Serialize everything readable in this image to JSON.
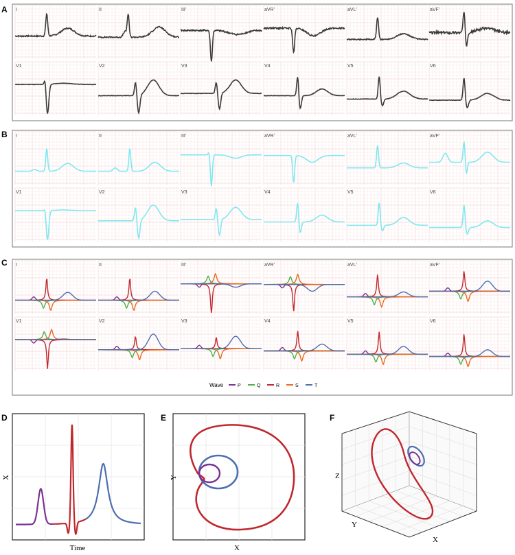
{
  "panel_letters": [
    "A",
    "B",
    "C",
    "D",
    "E",
    "F"
  ],
  "lead_labels": [
    "I",
    "II",
    "IIIʹ",
    "aVRʹ",
    "aVLʹ",
    "aVFʹ",
    "V1",
    "V2",
    "V3",
    "V4",
    "V5",
    "V6"
  ],
  "legend": {
    "title": "Wave",
    "entries": [
      {
        "name": "P",
        "color": "#7B3294"
      },
      {
        "name": "Q",
        "color": "#4DAF4A"
      },
      {
        "name": "R",
        "color": "#C0272D"
      },
      {
        "name": "S",
        "color": "#E66A1F"
      },
      {
        "name": "T",
        "color": "#4A6FB0"
      }
    ]
  },
  "colors": {
    "raw_trace": "#3a3a3a",
    "fit_trace": "#7EE8F0",
    "grid_major": "#f0c4c4",
    "grid_minor": "#fae6e6",
    "frame": "#777777"
  },
  "chart_data": [
    {
      "panel": "A",
      "type": "line",
      "leads": {
        "I": {
          "spikes": [
            [
              0.39,
              1.0,
              0.012
            ]
          ],
          "bumps": [
            [
              0.65,
              0.35,
              0.08
            ]
          ],
          "base": -0.05,
          "noise": 0.06
        },
        "II": {
          "spikes": [
            [
              0.37,
              1.0,
              0.012
            ],
            [
              0.33,
              0.25,
              0.02
            ]
          ],
          "bumps": [
            [
              0.75,
              0.45,
              0.08
            ]
          ],
          "base": -0.1,
          "noise": 0.06
        },
        "IIIʹ": {
          "spikes": [
            [
              0.38,
              -1.4,
              0.012
            ]
          ],
          "bumps": [
            [
              0.7,
              -0.18,
              0.1
            ]
          ],
          "base": 0.2,
          "noise": 0.07
        },
        "aVRʹ": {
          "spikes": [
            [
              0.37,
              -1.1,
              0.012
            ]
          ],
          "bumps": [
            [
              0.62,
              -0.35,
              0.08
            ]
          ],
          "base": 0.3,
          "noise": 0.07
        },
        "aVLʹ": {
          "spikes": [
            [
              0.38,
              1.0,
              0.012
            ]
          ],
          "bumps": [
            [
              0.7,
              0.25,
              0.08
            ]
          ],
          "base": -0.2,
          "noise": 0.05
        },
        "aVFʹ": {
          "spikes": [
            [
              0.43,
              0.9,
              0.012
            ],
            [
              0.46,
              -0.6,
              0.012
            ]
          ],
          "bumps": [
            [
              0.7,
              0.2,
              0.1
            ]
          ],
          "base": 0.1,
          "noise": 0.12
        },
        "V1": {
          "spikes": [
            [
              0.4,
              -1.3,
              0.016
            ],
            [
              0.37,
              0.3,
              0.01
            ]
          ],
          "bumps": [
            [
              0.6,
              0.05,
              0.1
            ]
          ],
          "base": 0.3,
          "noise": 0.02
        },
        "V2": {
          "spikes": [
            [
              0.46,
              0.6,
              0.012
            ],
            [
              0.5,
              -0.8,
              0.015
            ]
          ],
          "bumps": [
            [
              0.68,
              0.7,
              0.07
            ]
          ],
          "base": -0.2,
          "noise": 0.02
        },
        "V3": {
          "spikes": [
            [
              0.44,
              0.5,
              0.012
            ],
            [
              0.48,
              -0.7,
              0.015
            ]
          ],
          "bumps": [
            [
              0.68,
              0.6,
              0.07
            ]
          ],
          "base": -0.1,
          "noise": 0.02
        },
        "V4": {
          "spikes": [
            [
              0.42,
              0.9,
              0.012
            ],
            [
              0.45,
              -0.6,
              0.015
            ]
          ],
          "bumps": [
            [
              0.72,
              0.3,
              0.07
            ]
          ],
          "base": -0.2,
          "noise": 0.02
        },
        "V5": {
          "spikes": [
            [
              0.4,
              1.0,
              0.012
            ],
            [
              0.44,
              -0.3,
              0.015
            ]
          ],
          "bumps": [
            [
              0.7,
              0.35,
              0.08
            ]
          ],
          "base": -0.35,
          "noise": 0.02
        },
        "V6": {
          "spikes": [
            [
              0.43,
              1.0,
              0.012
            ],
            [
              0.47,
              -0.35,
              0.015
            ]
          ],
          "bumps": [
            [
              0.72,
              0.3,
              0.08
            ]
          ],
          "base": -0.4,
          "noise": 0.02
        }
      }
    },
    {
      "panel": "B",
      "type": "line",
      "leads": {
        "I": {
          "spikes": [
            [
              0.39,
              1.0,
              0.012
            ]
          ],
          "bumps": [
            [
              0.24,
              0.08,
              0.025
            ],
            [
              0.65,
              0.35,
              0.07
            ]
          ],
          "base": -0.45
        },
        "II": {
          "spikes": [
            [
              0.39,
              1.0,
              0.012
            ]
          ],
          "bumps": [
            [
              0.21,
              0.15,
              0.025
            ],
            [
              0.7,
              0.4,
              0.07
            ]
          ],
          "base": -0.45
        },
        "IIIʹ": {
          "spikes": [
            [
              0.38,
              -1.4,
              0.012
            ],
            [
              0.35,
              0.12,
              0.01
            ]
          ],
          "bumps": [
            [
              0.68,
              -0.15,
              0.07
            ]
          ],
          "base": 0.28
        },
        "aVRʹ": {
          "spikes": [
            [
              0.37,
              -1.2,
              0.012
            ]
          ],
          "bumps": [
            [
              0.6,
              -0.3,
              0.07
            ]
          ],
          "base": 0.25
        },
        "aVLʹ": {
          "spikes": [
            [
              0.38,
              1.0,
              0.012
            ]
          ],
          "bumps": [
            [
              0.7,
              0.22,
              0.07
            ]
          ],
          "base": -0.3
        },
        "aVFʹ": {
          "spikes": [
            [
              0.43,
              0.9,
              0.012
            ],
            [
              0.46,
              -0.5,
              0.012
            ]
          ],
          "bumps": [
            [
              0.2,
              0.4,
              0.03
            ],
            [
              0.72,
              0.45,
              0.07
            ]
          ],
          "base": -0.05
        },
        "V1": {
          "spikes": [
            [
              0.4,
              -1.3,
              0.016
            ],
            [
              0.37,
              0.15,
              0.01
            ]
          ],
          "bumps": [
            [
              0.6,
              0.03,
              0.1
            ]
          ],
          "base": 0.3
        },
        "V2": {
          "spikes": [
            [
              0.46,
              0.6,
              0.012
            ],
            [
              0.5,
              -0.8,
              0.015
            ]
          ],
          "bumps": [
            [
              0.68,
              0.7,
              0.07
            ]
          ],
          "base": -0.15
        },
        "V3": {
          "spikes": [
            [
              0.44,
              0.5,
              0.012
            ],
            [
              0.48,
              -0.7,
              0.015
            ]
          ],
          "bumps": [
            [
              0.68,
              0.55,
              0.07
            ]
          ],
          "base": -0.1
        },
        "V4": {
          "spikes": [
            [
              0.42,
              0.9,
              0.012
            ],
            [
              0.45,
              -0.5,
              0.015
            ]
          ],
          "bumps": [
            [
              0.72,
              0.3,
              0.07
            ]
          ],
          "base": -0.2
        },
        "V5": {
          "spikes": [
            [
              0.4,
              1.0,
              0.012
            ],
            [
              0.44,
              -0.25,
              0.015
            ]
          ],
          "bumps": [
            [
              0.7,
              0.35,
              0.07
            ]
          ],
          "base": -0.35
        },
        "V6": {
          "spikes": [
            [
              0.43,
              1.0,
              0.012
            ],
            [
              0.47,
              -0.3,
              0.015
            ]
          ],
          "bumps": [
            [
              0.72,
              0.3,
              0.07
            ]
          ],
          "base": -0.45
        }
      }
    },
    {
      "panel": "C",
      "type": "line",
      "note": "Each lead decomposed into five wave components (P, Q, R, S, T).",
      "component_order": [
        "P",
        "Q",
        "R",
        "S",
        "T"
      ]
    },
    {
      "panel": "D",
      "type": "line",
      "xlabel": "Time",
      "ylabel": "X",
      "segments": [
        {
          "wave": "P",
          "x": [
            0.0,
            0.12,
            0.2,
            0.25,
            0.3
          ],
          "y": [
            0.0,
            0.05,
            0.35,
            0.1,
            0.02
          ]
        },
        {
          "wave": "R",
          "x": [
            0.3,
            0.38,
            0.42,
            0.45,
            0.48,
            0.52
          ],
          "y": [
            0.02,
            -0.05,
            0.0,
            1.0,
            -0.05,
            0.0
          ]
        },
        {
          "wave": "T",
          "x": [
            0.52,
            0.62,
            0.72,
            0.8,
            1.0
          ],
          "y": [
            0.0,
            0.08,
            0.6,
            0.15,
            0.0
          ]
        }
      ]
    },
    {
      "panel": "E",
      "type": "line",
      "xlabel": "X",
      "ylabel": "Y",
      "loops": [
        "R",
        "T",
        "P"
      ]
    },
    {
      "panel": "F",
      "type": "line",
      "xlabel": "X",
      "ylabel": "Y",
      "zlabel": "Z",
      "loops": [
        "R",
        "T",
        "P"
      ]
    }
  ]
}
